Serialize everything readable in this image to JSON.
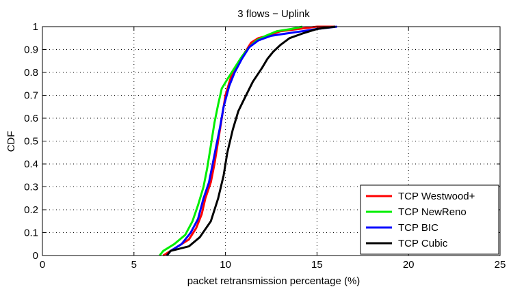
{
  "chart_data": {
    "type": "line",
    "title": "3 flows − Uplink",
    "xlabel": "packet retransmission percentage (%)",
    "ylabel": "CDF",
    "xlim": [
      0,
      25
    ],
    "ylim": [
      0,
      1
    ],
    "xticks": [
      0,
      5,
      10,
      15,
      20,
      25
    ],
    "xtick_labels": [
      "0",
      "5",
      "10",
      "15",
      "20",
      "25"
    ],
    "yticks": [
      0,
      0.1,
      0.2,
      0.3,
      0.4,
      0.5,
      0.6,
      0.7,
      0.8,
      0.9,
      1
    ],
    "ytick_labels": [
      "0",
      "0.1",
      "0.2",
      "0.3",
      "0.4",
      "0.5",
      "0.6",
      "0.7",
      "0.8",
      "0.9",
      "1"
    ],
    "grid": true,
    "legend_position": "bottom-right",
    "series": [
      {
        "name": "TCP Westwood+",
        "color": "#ff0000",
        "x": [
          6.6,
          6.8,
          7.4,
          8.0,
          8.4,
          8.7,
          8.9,
          9.2,
          9.4,
          9.6,
          9.8,
          10.0,
          10.3,
          10.6,
          11.0,
          11.4,
          11.8,
          12.3,
          13.0,
          14.0,
          15.0,
          16.0
        ],
        "y": [
          0.0,
          0.01,
          0.04,
          0.07,
          0.12,
          0.18,
          0.25,
          0.32,
          0.4,
          0.5,
          0.6,
          0.7,
          0.78,
          0.82,
          0.88,
          0.93,
          0.95,
          0.96,
          0.98,
          0.99,
          1.0,
          1.0
        ]
      },
      {
        "name": "TCP NewReno",
        "color": "#00ee00",
        "x": [
          6.4,
          6.6,
          7.2,
          7.8,
          8.2,
          8.5,
          8.8,
          9.0,
          9.2,
          9.4,
          9.6,
          9.8,
          10.1,
          10.5,
          10.9,
          11.3,
          11.7,
          12.2,
          12.8,
          13.6,
          14.2
        ],
        "y": [
          0.0,
          0.02,
          0.05,
          0.09,
          0.15,
          0.22,
          0.3,
          0.38,
          0.48,
          0.58,
          0.66,
          0.73,
          0.77,
          0.82,
          0.87,
          0.91,
          0.94,
          0.96,
          0.98,
          0.99,
          1.0
        ]
      },
      {
        "name": "TCP BIC",
        "color": "#0000ff",
        "x": [
          6.8,
          7.0,
          7.6,
          8.1,
          8.5,
          8.8,
          9.1,
          9.3,
          9.5,
          9.7,
          9.9,
          10.2,
          10.5,
          10.9,
          11.3,
          11.8,
          12.5,
          13.3,
          14.2,
          15.0,
          16.1
        ],
        "y": [
          0.0,
          0.02,
          0.05,
          0.1,
          0.16,
          0.25,
          0.32,
          0.4,
          0.48,
          0.56,
          0.65,
          0.74,
          0.8,
          0.86,
          0.91,
          0.94,
          0.96,
          0.97,
          0.98,
          0.99,
          1.0
        ]
      },
      {
        "name": "TCP Cubic",
        "color": "#000000",
        "x": [
          6.8,
          7.0,
          8.0,
          8.6,
          9.2,
          9.6,
          9.9,
          10.1,
          10.4,
          10.7,
          11.0,
          11.5,
          12.0,
          12.3,
          12.6,
          13.0,
          13.5,
          14.2,
          15.0,
          16.0
        ],
        "y": [
          0.0,
          0.02,
          0.04,
          0.08,
          0.15,
          0.25,
          0.35,
          0.45,
          0.55,
          0.63,
          0.68,
          0.76,
          0.82,
          0.86,
          0.89,
          0.92,
          0.95,
          0.97,
          0.99,
          1.0
        ]
      }
    ]
  }
}
